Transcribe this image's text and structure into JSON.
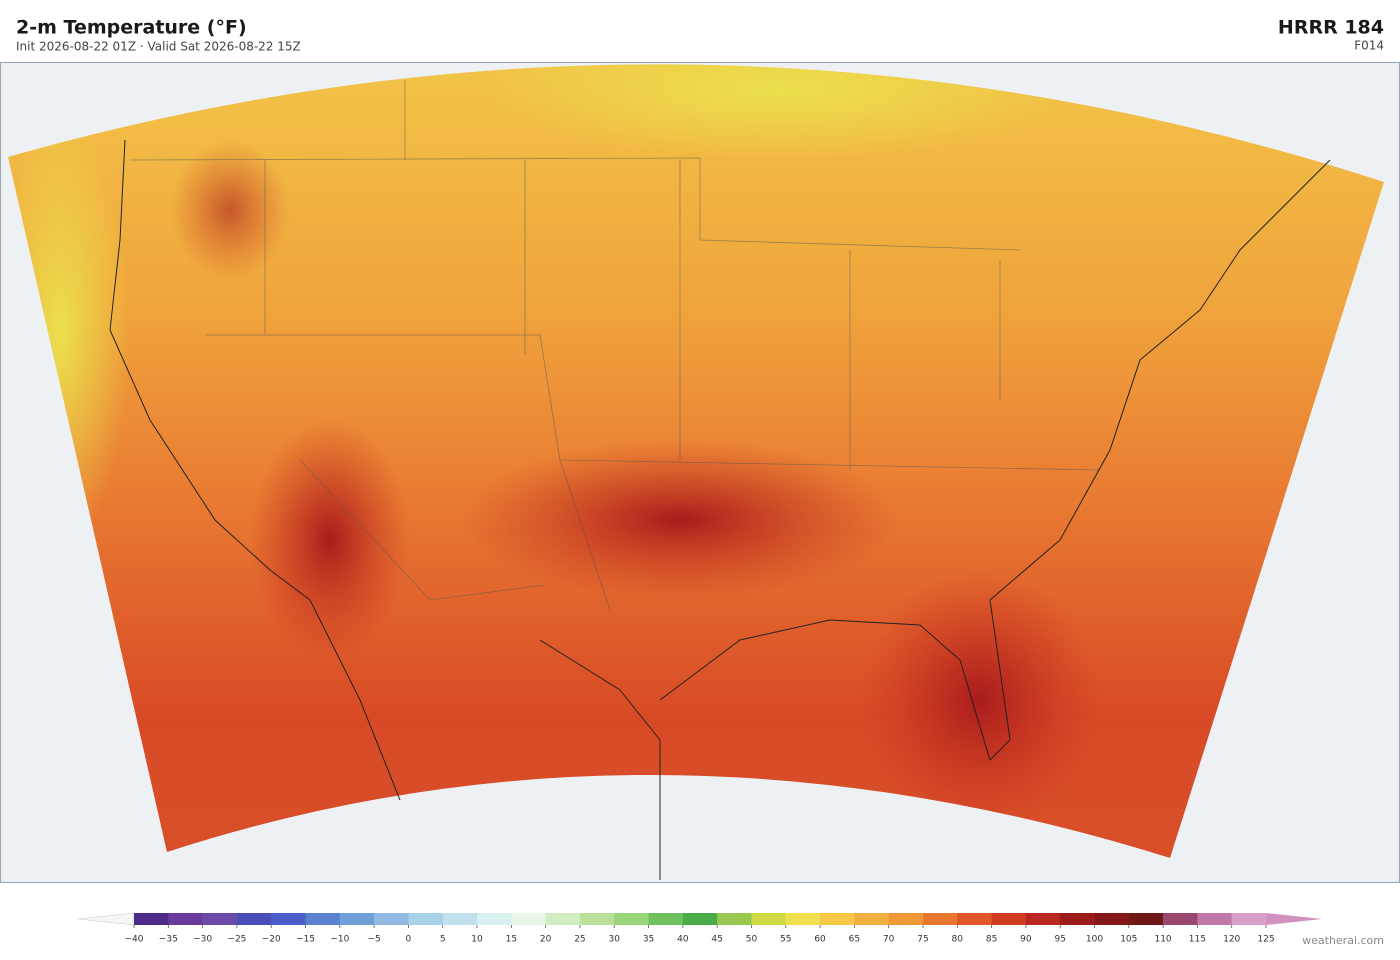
{
  "header": {
    "title": "2-m Temperature  (°F)",
    "subtitle": "Init 2026-08-22 01Z   ·   Valid Sat 2026-08-22 15Z",
    "model": "HRRR  184",
    "forecast_hour": "F014"
  },
  "colorbar": {
    "ticks": [
      {
        "value": -40,
        "label": "−40"
      },
      {
        "value": -35,
        "label": "−35"
      },
      {
        "value": -30,
        "label": "−30"
      },
      {
        "value": -25,
        "label": "−25"
      },
      {
        "value": -20,
        "label": "−20"
      },
      {
        "value": -15,
        "label": "−15"
      },
      {
        "value": -10,
        "label": "−10"
      },
      {
        "value": -5,
        "label": "−5"
      },
      0,
      5,
      10,
      15,
      20,
      25,
      30,
      35,
      40,
      45,
      50,
      55,
      60,
      65,
      70,
      75,
      80,
      85,
      90,
      95,
      100,
      105,
      110,
      115,
      120,
      125
    ],
    "colors": [
      "#4b2a8a",
      "#6a3a9a",
      "#6b4aaa",
      "#4a4cb8",
      "#4a60c8",
      "#5a80d0",
      "#70a0d8",
      "#90b8e0",
      "#a8d0e8",
      "#c0e0ec",
      "#d8f0f0",
      "#e8f6e8",
      "#d0ecc0",
      "#b8e098",
      "#98d478",
      "#70c060",
      "#4aac48",
      "#98c850",
      "#d0d848",
      "#f0e050",
      "#f5c84a",
      "#f0b040",
      "#f09838",
      "#e87830",
      "#e05828",
      "#d03c22",
      "#b82820",
      "#9c1c1c",
      "#841818",
      "#701818",
      "#9a4870",
      "#c078a8",
      "#d8a0c8"
    ],
    "under_color": "#f4f6f8",
    "over_color": "#d090c0"
  },
  "credit": "weatherai.com"
}
